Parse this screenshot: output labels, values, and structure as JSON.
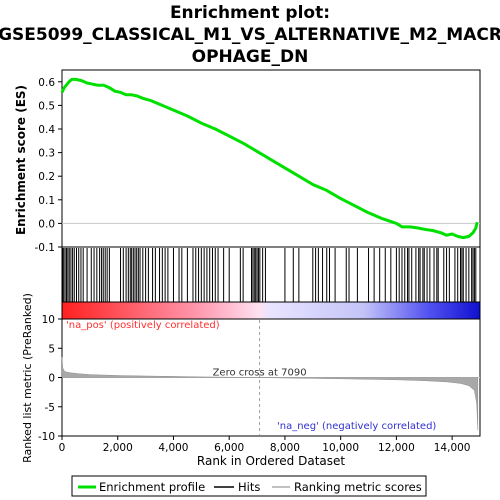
{
  "chart_data": {
    "type": "line",
    "title_lines": [
      "Enrichment plot:",
      "GSE5099_CLASSICAL_M1_VS_ALTERNATIVE_M2_MACR",
      "OPHAGE_DN"
    ],
    "es_panel": {
      "ylabel": "Enrichment score (ES)",
      "ylim": [
        -0.1,
        0.65
      ],
      "yticks": [
        "0.6",
        "0.5",
        "0.4",
        "0.3",
        "0.2",
        "0.1",
        "0.0",
        "-0.1"
      ],
      "ytick_values": [
        0.6,
        0.5,
        0.4,
        0.3,
        0.2,
        0.1,
        0.0,
        -0.1
      ],
      "xlim": [
        0,
        15000
      ],
      "series": [
        {
          "name": "Enrichment profile",
          "color": "#00e000",
          "x": [
            0,
            80,
            150,
            250,
            350,
            500,
            700,
            900,
            1100,
            1300,
            1500,
            1700,
            1900,
            2100,
            2300,
            2500,
            2700,
            2900,
            3200,
            3600,
            4000,
            4500,
            5000,
            5500,
            6000,
            6500,
            7000,
            7500,
            8000,
            8500,
            9000,
            9500,
            10000,
            10500,
            11000,
            11500,
            12000,
            12200,
            12500,
            12800,
            13000,
            13300,
            13600,
            13800,
            14000,
            14200,
            14400,
            14600,
            14750,
            14850,
            14900
          ],
          "y": [
            0.555,
            0.575,
            0.585,
            0.6,
            0.61,
            0.61,
            0.605,
            0.595,
            0.59,
            0.585,
            0.585,
            0.575,
            0.56,
            0.555,
            0.545,
            0.545,
            0.54,
            0.53,
            0.52,
            0.5,
            0.48,
            0.455,
            0.425,
            0.4,
            0.37,
            0.34,
            0.305,
            0.27,
            0.235,
            0.2,
            0.165,
            0.14,
            0.105,
            0.075,
            0.045,
            0.02,
            0.0,
            -0.015,
            -0.015,
            -0.02,
            -0.025,
            -0.03,
            -0.04,
            -0.05,
            -0.045,
            -0.055,
            -0.06,
            -0.055,
            -0.04,
            -0.02,
            0.005
          ]
        }
      ]
    },
    "hits_panel": {
      "hit_positions": [
        20,
        60,
        110,
        160,
        210,
        260,
        320,
        380,
        440,
        520,
        600,
        680,
        760,
        900,
        1050,
        1150,
        1250,
        1350,
        1420,
        1480,
        1550,
        1620,
        1700,
        2100,
        2200,
        2300,
        2380,
        2450,
        2500,
        2560,
        2620,
        2680,
        2740,
        2800,
        2900,
        3000,
        3100,
        3250,
        3350,
        3500,
        3600,
        3700,
        3800,
        4000,
        4200,
        4300,
        4500,
        4700,
        4800,
        4900,
        5000,
        5100,
        5200,
        5300,
        5400,
        5500,
        5600,
        5800,
        6000,
        6400,
        6500,
        6800,
        6850,
        6900,
        6950,
        7000,
        7050,
        7100,
        7200,
        7300,
        8000,
        8300,
        8500,
        9000,
        9100,
        9200,
        9350,
        9500,
        9600,
        9800,
        10200,
        10300,
        10600,
        11000,
        11200,
        11400,
        11600,
        11800,
        12000,
        12100,
        12200,
        12300,
        12400,
        12450,
        12550,
        12700,
        12800,
        12850,
        12950,
        13000,
        13100,
        13200,
        13350,
        13450,
        13500,
        13700,
        13800,
        13900,
        14100,
        14200,
        14300,
        14350,
        14400,
        14500,
        14600,
        14700,
        14750,
        14800,
        14850
      ]
    },
    "ranked_panel": {
      "ylabel": "Ranked list metric (PreRanked)",
      "ylim": [
        -10,
        10
      ],
      "yticks": [
        "10",
        "5",
        "0",
        "-5",
        "-10"
      ],
      "ytick_values": [
        10,
        5,
        0,
        -5,
        -10
      ],
      "metric_x": [
        0,
        30,
        100,
        300,
        600,
        1000,
        2000,
        3000,
        4000,
        5000,
        6000,
        7090,
        8000,
        9000,
        10000,
        11000,
        12000,
        13000,
        13800,
        14300,
        14600,
        14800,
        14880,
        14920
      ],
      "metric_y": [
        3.5,
        1.6,
        1.0,
        0.8,
        0.65,
        0.5,
        0.35,
        0.25,
        0.18,
        0.1,
        0.05,
        0.0,
        -0.08,
        -0.15,
        -0.22,
        -0.3,
        -0.4,
        -0.55,
        -0.75,
        -1.0,
        -1.4,
        -2.2,
        -4.5,
        -9.0
      ],
      "pos_label": "'na_pos' (positively correlated)",
      "neg_label": "'na_neg' (negatively correlated)",
      "zero_cross_label": "Zero cross at 7090",
      "zero_cross": 7090
    },
    "xlabel": "Rank in Ordered Dataset",
    "xticks": [
      "0",
      "2,000",
      "4,000",
      "6,000",
      "8,000",
      "10,000",
      "12,000",
      "14,000"
    ],
    "xtick_values": [
      0,
      2000,
      4000,
      6000,
      8000,
      10000,
      12000,
      14000
    ],
    "legend": {
      "placement": "bottom",
      "items": [
        {
          "label": "Enrichment profile",
          "color": "#00e000"
        },
        {
          "label": "Hits",
          "color": "#000000"
        },
        {
          "label": "Ranking metric scores",
          "color": "#c0c0c0"
        }
      ]
    },
    "colors": {
      "pos": "#ff0000",
      "neg": "#0000ff",
      "pos_text": "#ff3030",
      "neg_text": "#3030d0",
      "zero_line": "#c8c8c8",
      "metric_fill": "#a8a8a8"
    }
  }
}
